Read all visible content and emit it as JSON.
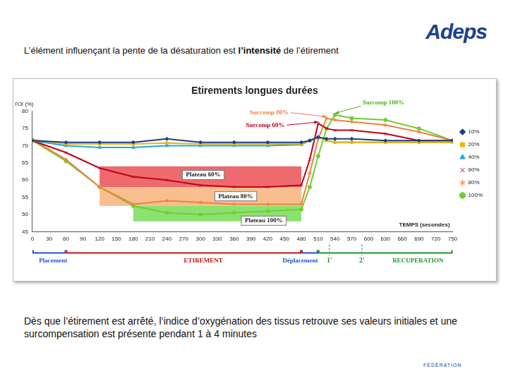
{
  "headline": {
    "before": "L’élément influençant la pente de la désaturation est ",
    "bold": "l’intensité",
    "after": " de l’étirement"
  },
  "logo": "Adeps",
  "caption": "Dès que l’étirement est arrêté, l’indice d’oxygénation des tissus retrouve ses valeurs initiales et une surcompensation est présente pendant 1 à 4 minutes",
  "footer_logo": "FÉDÉRATION",
  "chart_data": {
    "type": "line",
    "title": "Etirements longues durées",
    "y_label": "TOI (%)",
    "x_label": "TEMPS (secondes)",
    "x": [
      0,
      60,
      120,
      180,
      240,
      300,
      360,
      420,
      480,
      495,
      510,
      525,
      540,
      570,
      630,
      690,
      750
    ],
    "xlim": [
      0,
      750
    ],
    "xticks": [
      0,
      30,
      60,
      90,
      120,
      150,
      180,
      210,
      240,
      270,
      300,
      330,
      360,
      390,
      420,
      450,
      480,
      510,
      540,
      570,
      600,
      630,
      660,
      690,
      720,
      750
    ],
    "ylim": [
      45,
      80
    ],
    "yticks": [
      45,
      50,
      55,
      60,
      65,
      70,
      75,
      80
    ],
    "grid": false,
    "legend": "right",
    "series": [
      {
        "name": "10%",
        "color": "#1f3c88",
        "marker": "diamond",
        "values": [
          71.5,
          71,
          71,
          71,
          72,
          71,
          71,
          71,
          71,
          71.5,
          72.5,
          72,
          72,
          72,
          71.5,
          71.5,
          71.5
        ]
      },
      {
        "name": "20%",
        "color": "#e8b800",
        "marker": "square",
        "values": [
          71.8,
          70.5,
          70.5,
          70.5,
          70.8,
          70.5,
          70.5,
          70.5,
          70.5,
          71.5,
          72.5,
          71.5,
          71,
          71,
          71,
          71,
          71
        ]
      },
      {
        "name": "40%",
        "color": "#1fa8dc",
        "marker": "triangle",
        "values": [
          71.5,
          70,
          69.5,
          69.5,
          70,
          70,
          70,
          70,
          70.3,
          71.5,
          72.5,
          71.5,
          71,
          71,
          71,
          71,
          71
        ]
      },
      {
        "name": "60%",
        "color": "#c00018",
        "marker": "cross",
        "values": [
          71.5,
          68,
          63.5,
          61,
          60,
          58.5,
          58,
          58,
          58.5,
          66,
          76.5,
          75,
          74.5,
          74.5,
          73.5,
          71.5,
          71.5
        ]
      },
      {
        "name": "80%",
        "color": "#f08040",
        "marker": "star",
        "values": [
          71.8,
          66,
          58,
          53,
          54,
          53.5,
          53,
          53,
          53,
          62,
          72,
          78,
          77.5,
          77,
          76,
          74,
          71.5
        ]
      },
      {
        "name": "100%",
        "color": "#6fcf30",
        "marker": "circle",
        "values": [
          71.5,
          65.5,
          58,
          52.5,
          50.5,
          50,
          50.5,
          51,
          51.5,
          58,
          67,
          75,
          79,
          78,
          77.5,
          75,
          71.5
        ]
      }
    ],
    "plateaus": [
      {
        "text": "Plateau 60%",
        "x": [
          120,
          480
        ],
        "y": [
          58,
          64
        ],
        "color": "#e8383d",
        "label_at": [
          305,
          61.5
        ]
      },
      {
        "text": "Plateau 80%",
        "x": [
          120,
          480
        ],
        "y": [
          52.5,
          58
        ],
        "color": "#f6a868",
        "label_at": [
          363,
          55.3
        ]
      },
      {
        "text": "Plateau 100%",
        "x": [
          180,
          480
        ],
        "y": [
          48,
          52.5
        ],
        "color": "#66d840",
        "label_at": [
          413,
          48.2
        ]
      }
    ],
    "callouts": [
      {
        "text": "Surcomp 60%",
        "x": 381,
        "y": 76,
        "color": "#c00018",
        "series": "60%"
      },
      {
        "text": "Surcomp 80%",
        "x": 388,
        "y": 79.6,
        "color": "#f08040",
        "series": "80%"
      },
      {
        "text": "Surcomp 100%",
        "x": 589,
        "y": 82.4,
        "color": "#4fb020",
        "series": "100%"
      }
    ],
    "phases": [
      {
        "text": "Placement",
        "start": 0,
        "end": 60,
        "color": "#1f4fd0",
        "label_at": 37
      },
      {
        "text": "ETIREMENT",
        "start": 60,
        "end": 480,
        "color": "#d01010",
        "label_at": 305
      },
      {
        "text": "Déplacement",
        "start": 480,
        "end": 510,
        "color": "#1f4fd0",
        "label_at": 478
      },
      {
        "text": "RECUPERATION",
        "start": 510,
        "end": 750,
        "color": "#1a9a30",
        "label_at": 688
      }
    ],
    "minute_marks": [
      {
        "text": "1'",
        "x": 530,
        "color": "#1a9a30"
      },
      {
        "text": "2'",
        "x": 588,
        "color": "#1a9a30"
      }
    ]
  }
}
